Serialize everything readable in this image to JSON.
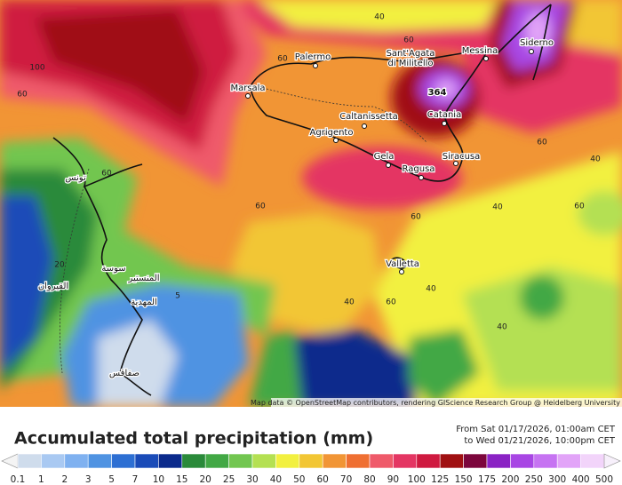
{
  "map": {
    "cities": [
      "Palermo",
      "Messina",
      "Siderno",
      "Marsala",
      "Caltanissetta",
      "Catania",
      "Agrigento",
      "Gela",
      "Siracusa",
      "Ragusa",
      "Valletta"
    ],
    "two_line_city": [
      "Sant'Agata",
      "di Militello"
    ],
    "arabic_labels": [
      "تونس",
      "سوسة",
      "المنستير",
      "المهدية",
      "صفاقس",
      "القيروان"
    ],
    "peak_label": "364",
    "contour_labels": [
      40,
      60,
      60,
      100,
      60,
      60,
      60,
      60,
      60,
      40,
      40,
      40,
      60,
      20,
      60,
      40,
      5,
      40
    ],
    "attribution": "Map data © OpenStreetMap contributors, rendering GIScience Research Group @ Heidelberg University"
  },
  "legend": {
    "title": "Accumulated total precipitation (mm)",
    "period_from": "From Sat 01/17/2026, 01:00am CET",
    "period_to": "to Wed 01/21/2026, 10:00pm CET",
    "labels": [
      "0.1",
      "1",
      "2",
      "3",
      "5",
      "7",
      "10",
      "15",
      "20",
      "25",
      "30",
      "40",
      "50",
      "60",
      "70",
      "80",
      "90",
      "100",
      "125",
      "150",
      "175",
      "200",
      "250",
      "300",
      "400",
      "500"
    ],
    "colors": [
      "#f4f4f4",
      "#cfdcec",
      "#a9c9f2",
      "#7fb1f0",
      "#4f93e2",
      "#2d6fd3",
      "#1a4bb8",
      "#0b2a8c",
      "#2a8a3a",
      "#42a845",
      "#72c650",
      "#b4e052",
      "#f2f040",
      "#f2c634",
      "#f19535",
      "#ef6f32",
      "#ef5a6a",
      "#e43663",
      "#cf1a40",
      "#a01012",
      "#7c063c",
      "#8a22c4",
      "#a846e4",
      "#c673f2",
      "#e2a4f8",
      "#f2d4fa",
      "#f7f0fb"
    ]
  }
}
